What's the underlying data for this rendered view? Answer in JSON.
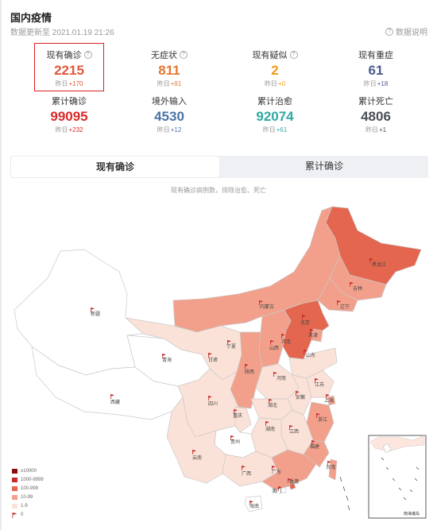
{
  "header": {
    "title": "国内疫情",
    "updated": "数据更新至 2021.01.19 21:26",
    "explain_label": "数据说明",
    "explain_icon": "question-circle-icon"
  },
  "stats": [
    {
      "label": "现有确诊",
      "value": "2215",
      "delta_prefix": "昨日",
      "delta": "+170",
      "color": "#e0573a",
      "info": true
    },
    {
      "label": "无症状",
      "value": "811",
      "delta_prefix": "昨日",
      "delta": "+91",
      "color": "#e57631",
      "info": true
    },
    {
      "label": "现有疑似",
      "value": "2",
      "delta_prefix": "昨日",
      "delta": "+0",
      "color": "#ef9b18",
      "info": true
    },
    {
      "label": "现有重症",
      "value": "61",
      "delta_prefix": "昨日",
      "delta": "+18",
      "color": "#4d5a8d",
      "info": false
    },
    {
      "label": "累计确诊",
      "value": "99095",
      "delta_prefix": "昨日",
      "delta": "+232",
      "color": "#d92a2a",
      "info": false
    },
    {
      "label": "境外输入",
      "value": "4530",
      "delta_prefix": "昨日",
      "delta": "+12",
      "color": "#4b73a7",
      "info": false
    },
    {
      "label": "累计治愈",
      "value": "92074",
      "delta_prefix": "昨日",
      "delta": "+61",
      "color": "#2fa9a2",
      "info": false
    },
    {
      "label": "累计死亡",
      "value": "4806",
      "delta_prefix": "昨日",
      "delta": "+1",
      "color": "#4b4f58",
      "info": false
    }
  ],
  "tabs": [
    "现有确诊",
    "累计确诊"
  ],
  "active_tab": 0,
  "map_note": "现有确诊病例数，排除治愈、死亡",
  "legend": [
    {
      "label": "≥10000",
      "color": "#8b0d0d"
    },
    {
      "label": "1000-9999",
      "color": "#c62c2c"
    },
    {
      "label": "100-999",
      "color": "#e4664e"
    },
    {
      "label": "10-99",
      "color": "#f2a08b"
    },
    {
      "label": "1-9",
      "color": "#fbe2d8"
    },
    {
      "label": "0",
      "color": "#ffffff"
    }
  ],
  "provinces": [
    {
      "name": "黑龙江",
      "level": "100-999"
    },
    {
      "name": "吉林",
      "level": "10-99"
    },
    {
      "name": "辽宁",
      "level": "10-99"
    },
    {
      "name": "内蒙古",
      "level": "10-99"
    },
    {
      "name": "北京",
      "level": "10-99"
    },
    {
      "name": "天津",
      "level": "10-99"
    },
    {
      "name": "河北",
      "level": "100-999"
    },
    {
      "name": "山西",
      "level": "10-99"
    },
    {
      "name": "山东",
      "level": "1-9"
    },
    {
      "name": "河南",
      "level": "1-9"
    },
    {
      "name": "陕西",
      "level": "10-99"
    },
    {
      "name": "宁夏",
      "level": "0"
    },
    {
      "name": "甘肃",
      "level": "1-9"
    },
    {
      "name": "青海",
      "level": "0"
    },
    {
      "name": "新疆",
      "level": "0"
    },
    {
      "name": "西藏",
      "level": "0"
    },
    {
      "name": "四川",
      "level": "1-9"
    },
    {
      "name": "重庆",
      "level": "1-9"
    },
    {
      "name": "湖北",
      "level": "1-9"
    },
    {
      "name": "安徽",
      "level": "1-9"
    },
    {
      "name": "江苏",
      "level": "1-9"
    },
    {
      "name": "上海",
      "level": "10-99"
    },
    {
      "name": "浙江",
      "level": "10-99"
    },
    {
      "name": "江西",
      "level": "1-9"
    },
    {
      "name": "湖南",
      "level": "1-9"
    },
    {
      "name": "贵州",
      "level": "0"
    },
    {
      "name": "云南",
      "level": "1-9"
    },
    {
      "name": "广西",
      "level": "1-9"
    },
    {
      "name": "广东",
      "level": "10-99"
    },
    {
      "name": "福建",
      "level": "10-99"
    },
    {
      "name": "台湾",
      "level": "10-99"
    },
    {
      "name": "香港",
      "level": "100-999"
    },
    {
      "name": "澳门",
      "level": "0"
    },
    {
      "name": "海南",
      "level": "0"
    }
  ],
  "inset_label": "南海诸岛"
}
